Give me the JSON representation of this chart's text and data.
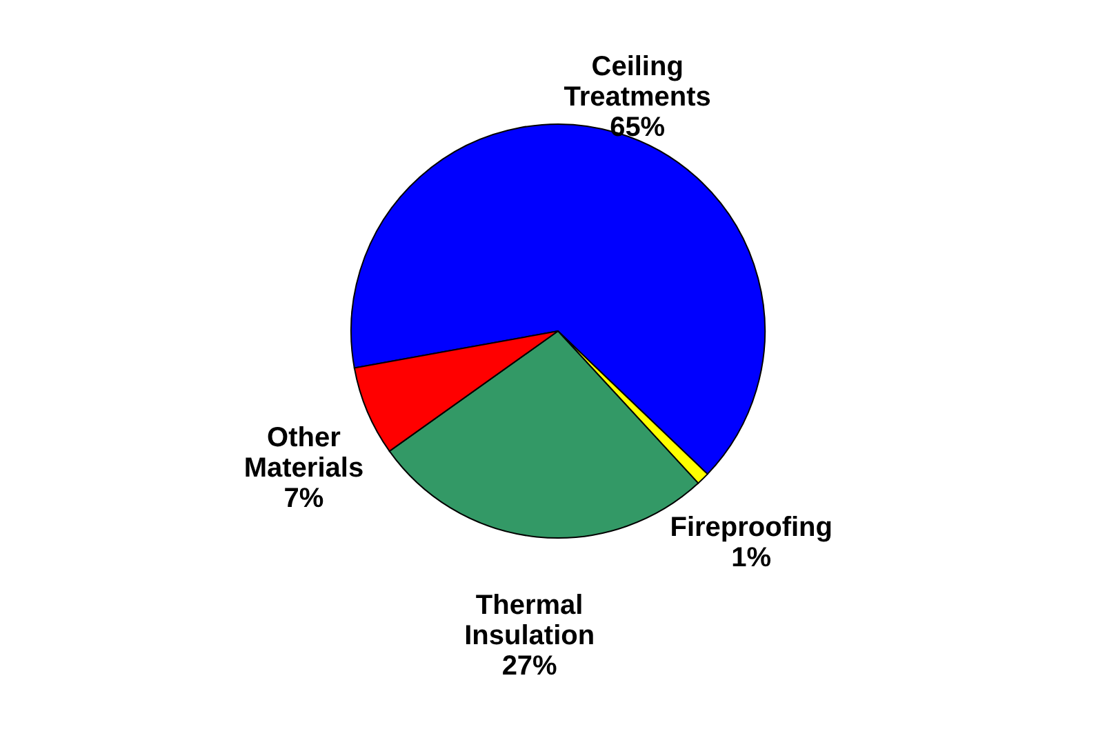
{
  "chart_data": {
    "type": "pie",
    "categories": [
      "Ceiling Treatments",
      "Fireproofing",
      "Thermal Insulation",
      "Other Materials"
    ],
    "values": [
      65,
      1,
      27,
      7
    ],
    "colors": [
      "#0000ff",
      "#ffff00",
      "#339966",
      "#ff0000"
    ],
    "value_labels": [
      "65%",
      "1%",
      "27%",
      "7%"
    ]
  }
}
